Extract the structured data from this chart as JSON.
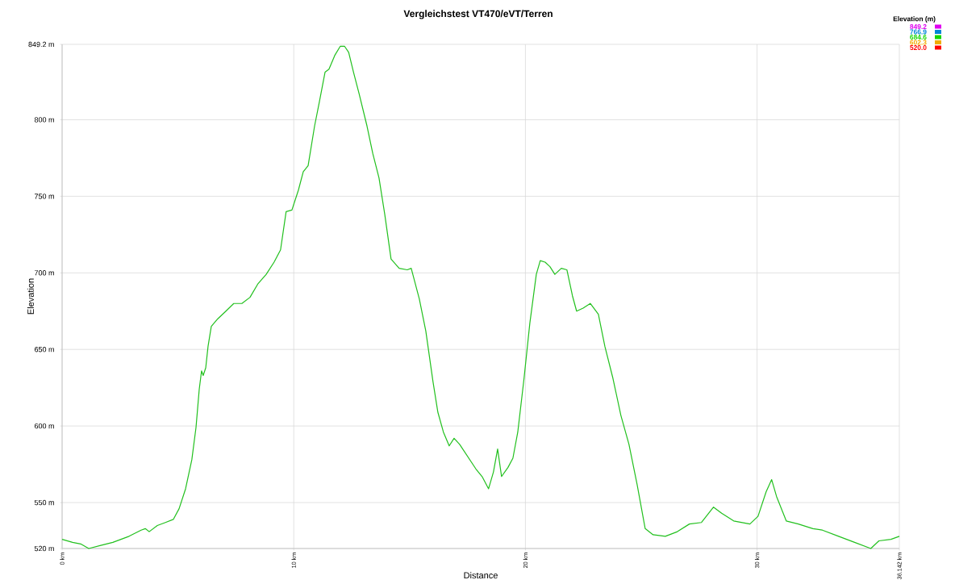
{
  "chart_data": {
    "type": "line",
    "color": "#22c01e",
    "title": "Vergleichstest VT470/eVT/Terren",
    "xlabel": "Distance",
    "ylabel": "Elevation",
    "clabel": "Elevation (m)",
    "x": [
      0,
      0.45,
      0.8,
      1.15,
      1.67,
      2.19,
      2.89,
      3.41,
      3.59,
      3.76,
      4.11,
      4.46,
      4.8,
      5.05,
      5.33,
      5.6,
      5.78,
      5.92,
      6.02,
      6.09,
      6.2,
      6.3,
      6.44,
      6.72,
      7.07,
      7.41,
      7.76,
      8.11,
      8.46,
      8.81,
      9.15,
      9.43,
      9.67,
      9.92,
      10.2,
      10.41,
      10.62,
      10.9,
      11.11,
      11.35,
      11.52,
      11.77,
      12.01,
      12.19,
      12.37,
      12.58,
      12.82,
      13.16,
      13.41,
      13.68,
      13.93,
      14.2,
      14.55,
      14.9,
      15.07,
      15.42,
      15.7,
      16.01,
      16.22,
      16.46,
      16.71,
      16.92,
      17.16,
      17.51,
      17.86,
      18.13,
      18.41,
      18.62,
      18.8,
      18.97,
      19.25,
      19.46,
      19.67,
      19.94,
      20.19,
      20.47,
      20.64,
      20.85,
      21.06,
      21.27,
      21.55,
      21.79,
      22.03,
      22.21,
      22.49,
      22.8,
      23.15,
      23.43,
      23.78,
      24.12,
      24.47,
      24.82,
      25.17,
      25.51,
      26.04,
      26.56,
      27.08,
      27.6,
      28.12,
      28.47,
      28.99,
      29.69,
      30.04,
      30.39,
      30.63,
      30.84,
      31.26,
      31.78,
      32.41,
      32.82,
      33.52,
      34.21,
      34.91,
      35.26,
      35.78,
      36.142
    ],
    "values": [
      526,
      524,
      523,
      520,
      522,
      524,
      528,
      532,
      533,
      531,
      535,
      537,
      539,
      546,
      559,
      578,
      599,
      624,
      636,
      633,
      638,
      652,
      665,
      670,
      675,
      680,
      680,
      684,
      693,
      699,
      707,
      715,
      740,
      741,
      754,
      766,
      770,
      796,
      812,
      831,
      833,
      842,
      848,
      848,
      844,
      831,
      817,
      796,
      778,
      762,
      738,
      709,
      703,
      702,
      703,
      683,
      662,
      629,
      609,
      596,
      587,
      592,
      588,
      580,
      572,
      567,
      559,
      570,
      585,
      567,
      573,
      579,
      596,
      631,
      667,
      699,
      708,
      707,
      704,
      699,
      703,
      702,
      685,
      675,
      677,
      680,
      673,
      652,
      631,
      607,
      588,
      562,
      533,
      529,
      528,
      531,
      536,
      537,
      547,
      543,
      538,
      536,
      541,
      557,
      565,
      554,
      538,
      536,
      533,
      532,
      528,
      524,
      520,
      525,
      526,
      528
    ],
    "xlim": [
      0,
      36.142
    ],
    "ylim": [
      520,
      849.2
    ],
    "xticks": [
      {
        "value": 0,
        "label": "0 km"
      },
      {
        "value": 10,
        "label": "10 km"
      },
      {
        "value": 20,
        "label": "20 km"
      },
      {
        "value": 30,
        "label": "30 km"
      },
      {
        "value": 36.142,
        "label": "36.142 km"
      }
    ],
    "yticks": [
      {
        "value": 520,
        "label": "520 m"
      },
      {
        "value": 550,
        "label": "550 m"
      },
      {
        "value": 600,
        "label": "600 m"
      },
      {
        "value": 650,
        "label": "650 m"
      },
      {
        "value": 700,
        "label": "700 m"
      },
      {
        "value": 750,
        "label": "750 m"
      },
      {
        "value": 800,
        "label": "800 m"
      },
      {
        "value": 849.2,
        "label": "849.2 m"
      }
    ],
    "clim": [
      520,
      849.2
    ],
    "cticks": [
      {
        "value": 520,
        "label": "520.0"
      },
      {
        "value": 602.3,
        "label": "602.3"
      },
      {
        "value": 684.6,
        "label": "684.6"
      },
      {
        "value": 766.9,
        "label": "766.9"
      },
      {
        "value": 849.2,
        "label": "849.2"
      }
    ],
    "grid": true
  }
}
